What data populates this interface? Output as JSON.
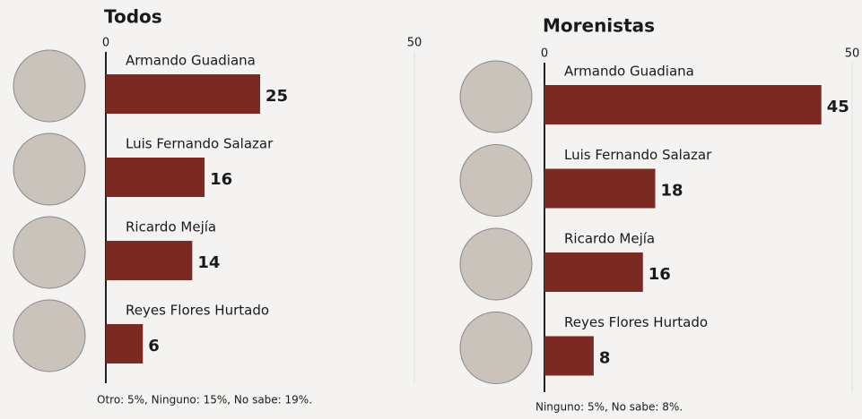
{
  "chart_data": [
    {
      "type": "bar",
      "orientation": "horizontal",
      "title": "Todos",
      "categories": [
        "Armando Guadiana",
        "Luis Fernando Salazar",
        "Ricardo Mejía",
        "Reyes Flores Hurtado"
      ],
      "values": [
        25,
        16,
        14,
        6
      ],
      "color": "#7a2a22",
      "xlim": [
        0,
        50
      ],
      "xticks": [
        0,
        50
      ],
      "note": "Otro: 5%, Ninguno: 15%, No sabe: 19%."
    },
    {
      "type": "bar",
      "orientation": "horizontal",
      "title": "Morenistas",
      "categories": [
        "Armando Guadiana",
        "Luis Fernando Salazar",
        "Ricardo Mejía",
        "Reyes Flores Hurtado"
      ],
      "values": [
        45,
        18,
        16,
        8
      ],
      "color": "#7a2a22",
      "xlim": [
        0,
        50
      ],
      "xticks": [
        0,
        50
      ],
      "note": "Ninguno: 5%, No sabe: 8%."
    }
  ]
}
